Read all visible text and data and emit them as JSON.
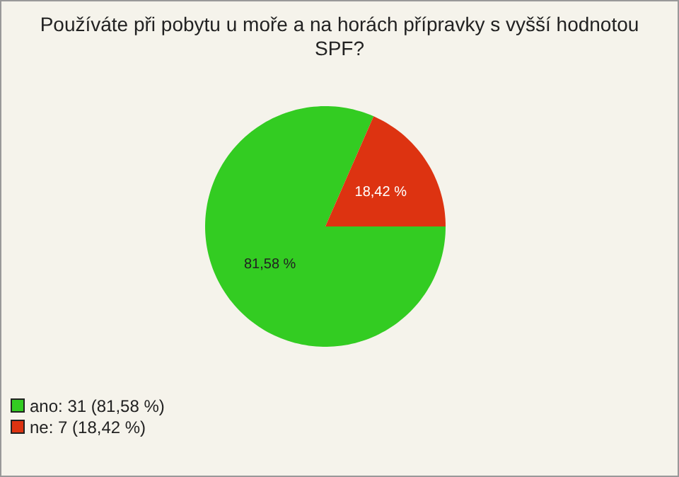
{
  "chart_data": {
    "type": "pie",
    "title": "Používáte při pobytu u moře a na horách přípravky s vyšší hodnotou SPF?",
    "categories": [
      "ano: 31 (81,58 %)",
      "ne: 7 (18,42 %)"
    ],
    "values": [
      81.58,
      18.42
    ],
    "colors": [
      "#33cc22",
      "#dd3311"
    ],
    "value_labels": [
      "81,58 %",
      "18,42 %"
    ],
    "legend": "bottom left"
  }
}
